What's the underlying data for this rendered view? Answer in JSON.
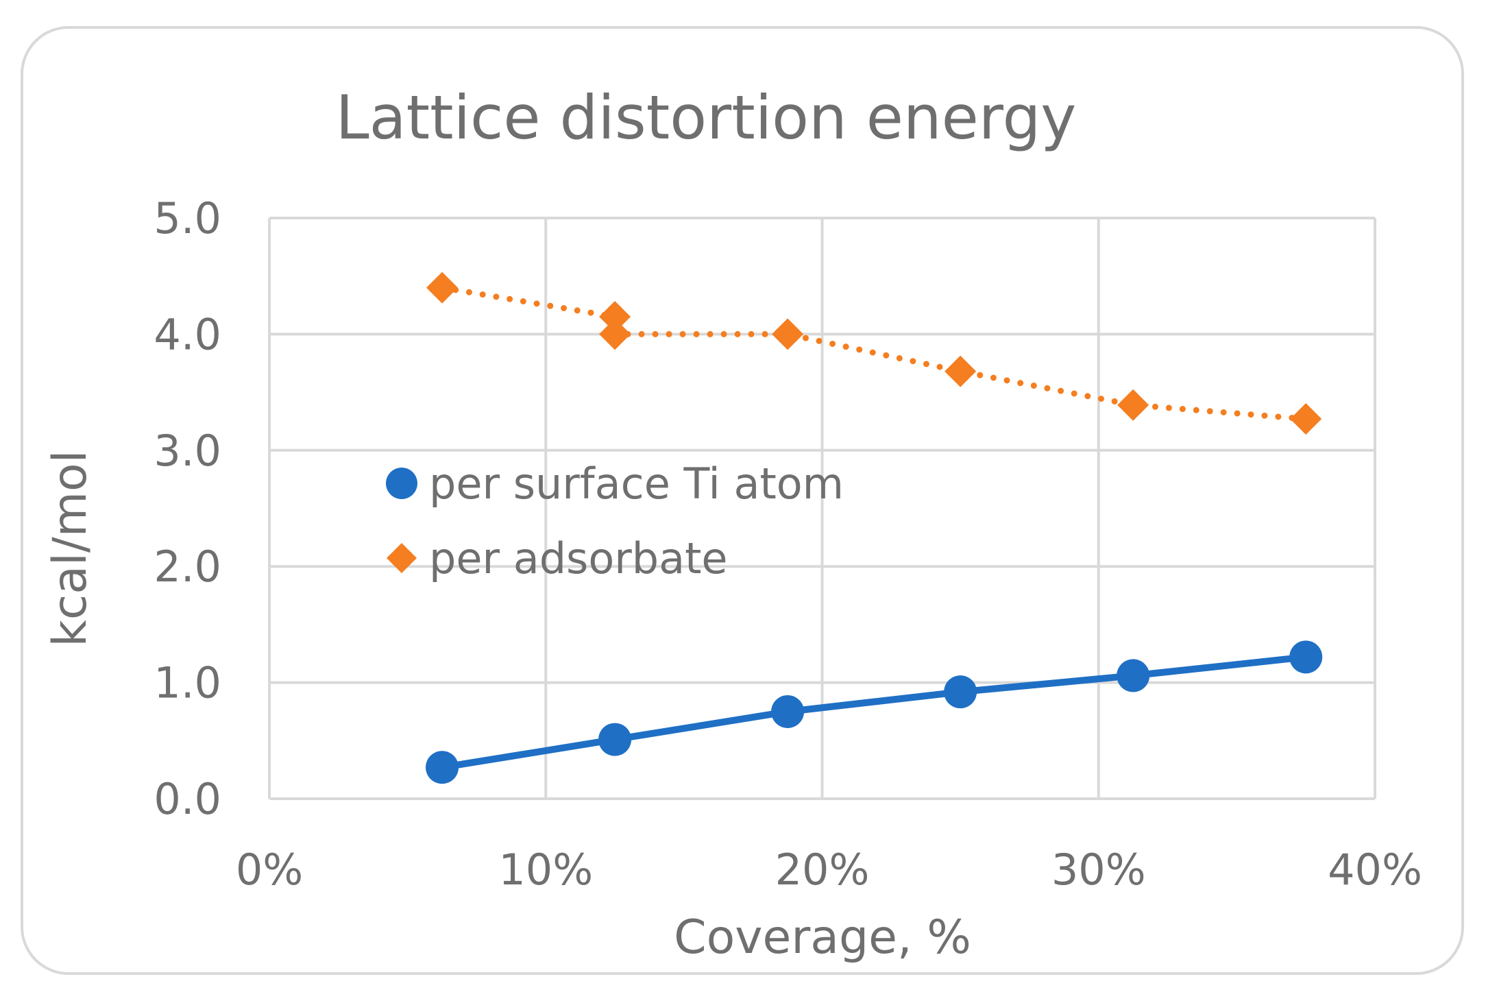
{
  "chart_data": {
    "type": "scatter",
    "title": "Lattice distortion energy",
    "xlabel": "Coverage, %",
    "ylabel": "kcal/mol",
    "xlim": [
      0,
      0.4
    ],
    "ylim": [
      0,
      5
    ],
    "x_ticks": [
      0,
      0.1,
      0.2,
      0.3,
      0.4
    ],
    "x_tick_labels": [
      "0%",
      "10%",
      "20%",
      "30%",
      "40%"
    ],
    "y_ticks": [
      0,
      1,
      2,
      3,
      4,
      5
    ],
    "y_tick_labels": [
      "0.0",
      "1.0",
      "2.0",
      "3.0",
      "4.0",
      "5.0"
    ],
    "grid": true,
    "legend_position": "center-left",
    "series": [
      {
        "name": "per surface Ti atom",
        "color": "#1f6fc5",
        "marker": "circle",
        "line": "solid",
        "x": [
          0.0625,
          0.125,
          0.1875,
          0.25,
          0.3125,
          0.375
        ],
        "y": [
          0.27,
          0.51,
          0.75,
          0.92,
          1.06,
          1.22
        ]
      },
      {
        "name": "per adsorbate",
        "color": "#f47e20",
        "marker": "diamond",
        "line": "dotted",
        "x": [
          0.0625,
          0.125,
          0.125,
          0.1875,
          0.25,
          0.3125,
          0.375
        ],
        "y": [
          4.4,
          4.15,
          4.0,
          4.0,
          3.68,
          3.39,
          3.27
        ]
      }
    ]
  }
}
